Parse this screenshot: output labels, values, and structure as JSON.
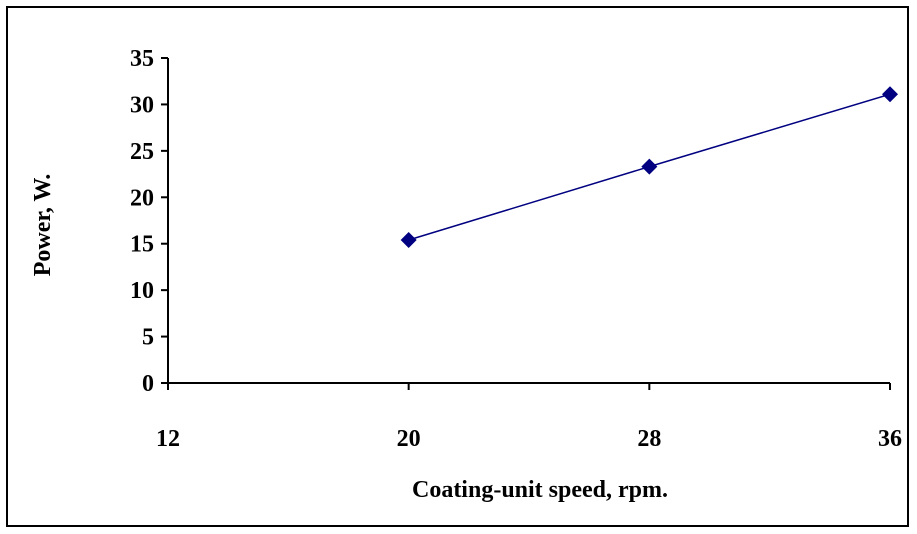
{
  "chart_data": {
    "type": "line",
    "title": "",
    "xlabel": "Coating-unit speed, rpm.",
    "ylabel": "Power, W.",
    "x_ticks": [
      "12",
      "20",
      "28",
      "36"
    ],
    "y_ticks": [
      "0",
      "5",
      "10",
      "15",
      "20",
      "25",
      "30",
      "35"
    ],
    "xlim": [
      12,
      36
    ],
    "ylim": [
      0,
      35
    ],
    "grid": false,
    "legend": "none",
    "series": [
      {
        "x": [
          20,
          28,
          36
        ],
        "y": [
          15.4,
          23.3,
          31.1
        ],
        "color": "#000080",
        "marker": "diamond"
      }
    ]
  }
}
